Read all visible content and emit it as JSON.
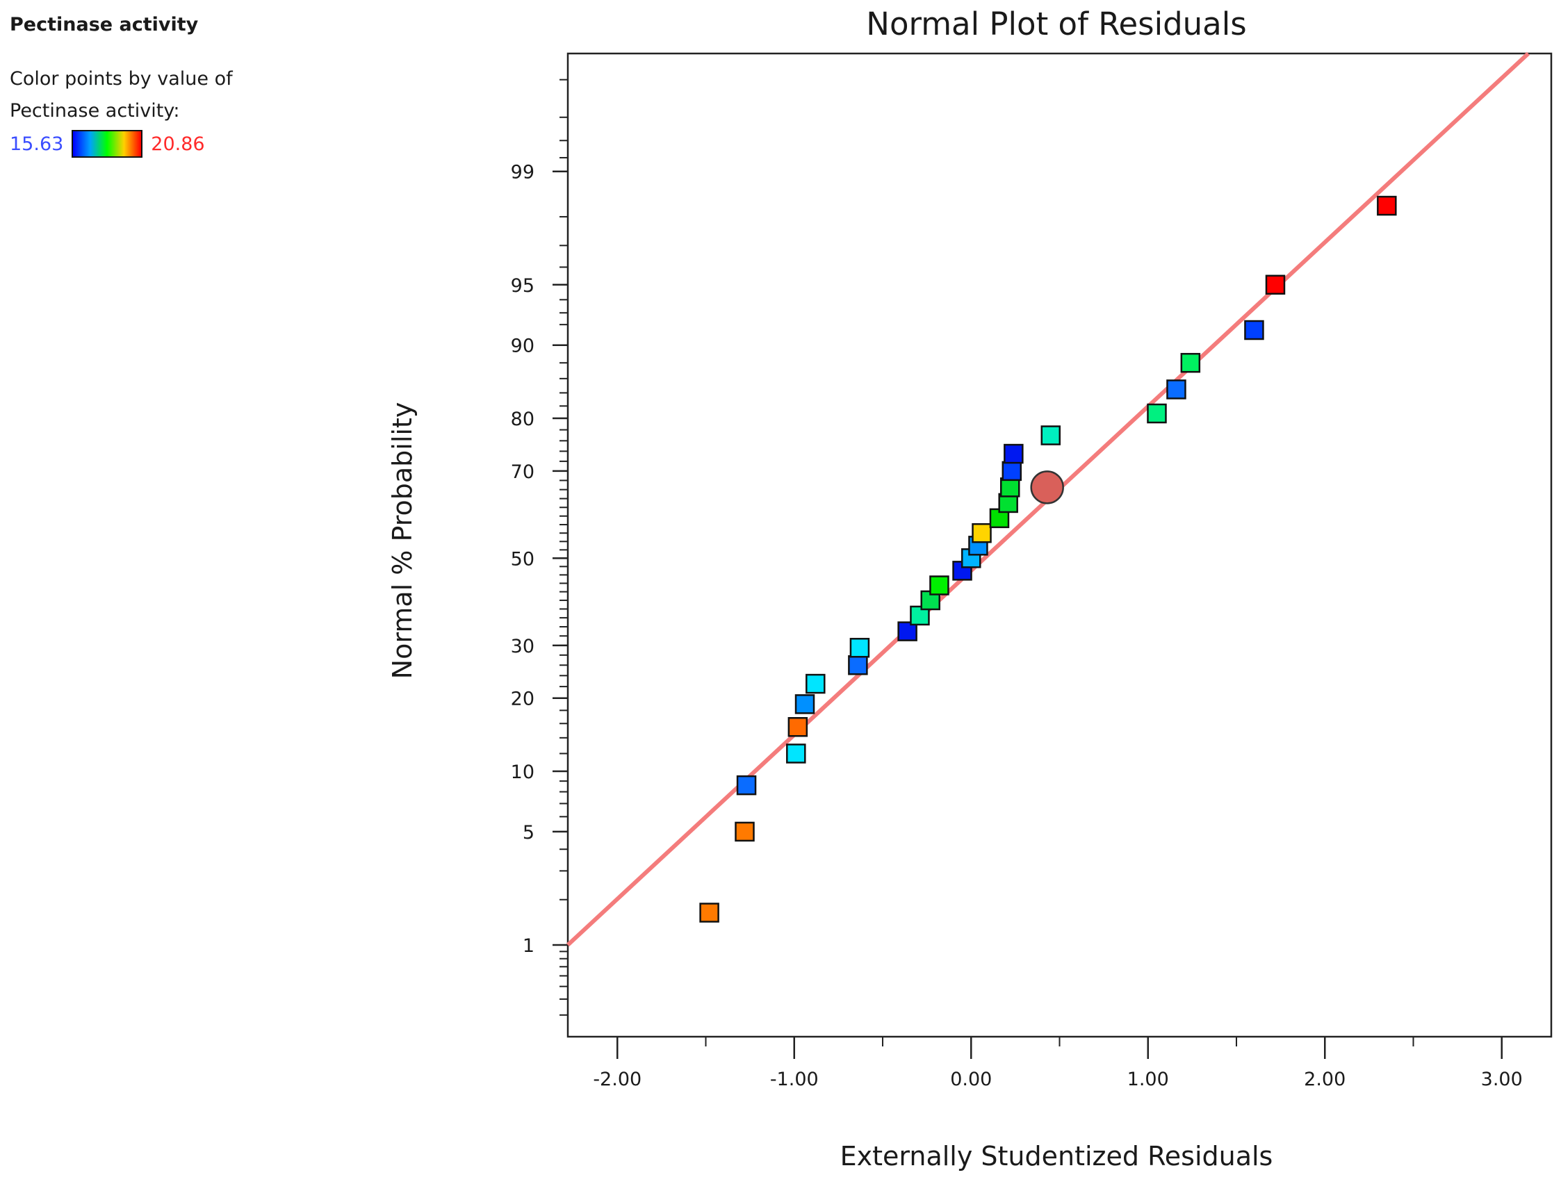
{
  "legend": {
    "title": "Pectinase activity",
    "line1": "Color points by value of",
    "line2": "Pectinase activity:",
    "min_label": "15.63",
    "max_label": "20.86"
  },
  "chart_data": {
    "type": "scatter",
    "title": "Normal Plot of Residuals",
    "xlabel": "Externally Studentized Residuals",
    "ylabel": "Normal % Probability",
    "xlim": [
      -2.28,
      3.28
    ],
    "ylim": [
      0.2,
      99.88
    ],
    "y_scale": "normal-probability",
    "x_ticks": [
      -2,
      -1,
      0,
      1,
      2,
      3
    ],
    "x_tick_labels": [
      "-2.00",
      "-1.00",
      "0.00",
      "1.00",
      "2.00",
      "3.00"
    ],
    "y_ticks": [
      1,
      5,
      10,
      20,
      30,
      50,
      70,
      80,
      90,
      95,
      99
    ],
    "y_tick_labels": [
      "1",
      "5",
      "10",
      "20",
      "30",
      "50",
      "70",
      "80",
      "90",
      "95",
      "99"
    ],
    "reference_line": {
      "color": "#f47c7c",
      "points": [
        [
          -2.28,
          1.0
        ],
        [
          3.15,
          99.88
        ]
      ]
    },
    "color_scale": {
      "min": 15.63,
      "max": 20.86
    },
    "points": [
      {
        "x": -1.48,
        "y": 1.65,
        "color": "#ff7a00"
      },
      {
        "x": -1.28,
        "y": 5.0,
        "color": "#ff7a00"
      },
      {
        "x": -1.27,
        "y": 8.6,
        "color": "#0a6cff"
      },
      {
        "x": -0.99,
        "y": 12.0,
        "color": "#00e5ff"
      },
      {
        "x": -0.98,
        "y": 15.5,
        "color": "#ff6a00"
      },
      {
        "x": -0.94,
        "y": 19.0,
        "color": "#0090ff"
      },
      {
        "x": -0.88,
        "y": 22.5,
        "color": "#00e5ff"
      },
      {
        "x": -0.64,
        "y": 26.0,
        "color": "#0a6cff"
      },
      {
        "x": -0.63,
        "y": 29.5,
        "color": "#00e5ff"
      },
      {
        "x": -0.36,
        "y": 33.0,
        "color": "#0018f0"
      },
      {
        "x": -0.29,
        "y": 36.5,
        "color": "#00f0a0"
      },
      {
        "x": -0.23,
        "y": 40.0,
        "color": "#00e050"
      },
      {
        "x": -0.18,
        "y": 43.5,
        "color": "#00f000"
      },
      {
        "x": -0.05,
        "y": 47.0,
        "color": "#0018f0"
      },
      {
        "x": 0.0,
        "y": 50.0,
        "color": "#00b4ff"
      },
      {
        "x": 0.04,
        "y": 53.0,
        "color": "#0090ff"
      },
      {
        "x": 0.06,
        "y": 56.0,
        "color": "#ffd400"
      },
      {
        "x": 0.16,
        "y": 59.5,
        "color": "#00e000"
      },
      {
        "x": 0.21,
        "y": 63.0,
        "color": "#00e030"
      },
      {
        "x": 0.22,
        "y": 66.5,
        "color": "#00e030"
      },
      {
        "x": 0.23,
        "y": 70.0,
        "color": "#0040ff"
      },
      {
        "x": 0.24,
        "y": 73.5,
        "color": "#0018f0"
      },
      {
        "x": 0.45,
        "y": 77.0,
        "color": "#00f0c0"
      },
      {
        "x": 1.05,
        "y": 80.8,
        "color": "#00f080"
      },
      {
        "x": 1.16,
        "y": 84.5,
        "color": "#0a6cff"
      },
      {
        "x": 1.24,
        "y": 88.0,
        "color": "#00f060"
      },
      {
        "x": 1.6,
        "y": 91.5,
        "color": "#0040ff"
      },
      {
        "x": 1.72,
        "y": 95.0,
        "color": "#ff0000"
      },
      {
        "x": 2.35,
        "y": 98.3,
        "color": "#ff0000"
      }
    ],
    "highlight_point": {
      "x": 0.43,
      "y": 66.5,
      "color": "#d9605a"
    }
  }
}
